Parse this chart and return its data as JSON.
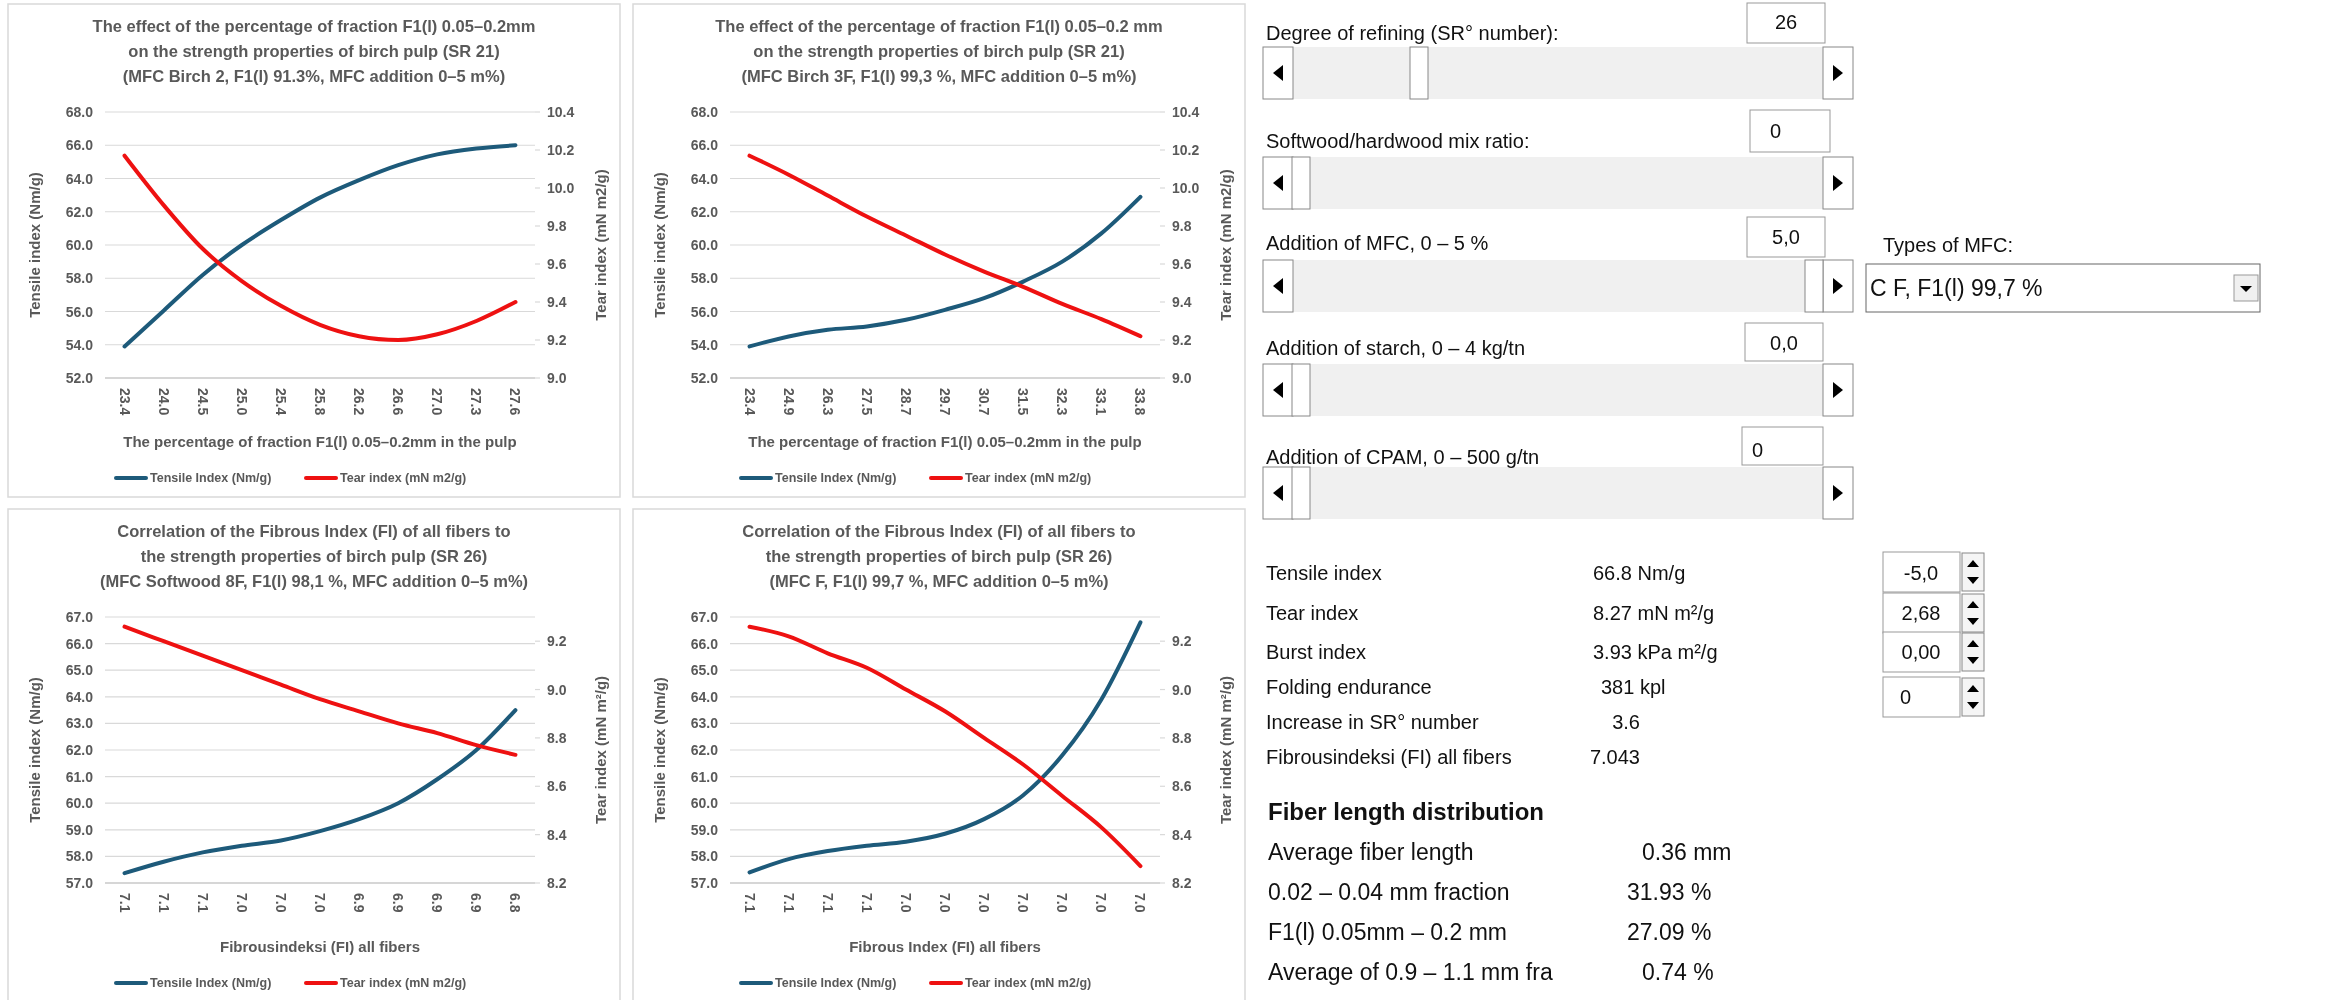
{
  "chart_data": [
    {
      "type": "line",
      "title": "The effect of the percentage of fraction F1(l) 0.05–0.2mm\non the strength properties of birch pulp (SR 21)\n(MFC Birch 2, F1(l) 91.3%, MFC addition 0–5 m%)",
      "xlabel": "The percentage of fraction F1(l) 0.05–0.2mm in the pulp",
      "ylabel": "Tensile index (Nm/g)",
      "y2label": "Tear index (mN m2/g)",
      "categories": [
        "23.4",
        "24.0",
        "24.5",
        "25.0",
        "25.4",
        "25.8",
        "26.2",
        "26.6",
        "27.0",
        "27.3",
        "27.6"
      ],
      "series": [
        {
          "name": "Tensile Index (Nm/g)",
          "color": "#1d5a7a",
          "values": [
            53.9,
            56.05,
            58.2,
            60.0,
            61.5,
            62.85,
            63.9,
            64.8,
            65.45,
            65.8,
            66.0
          ]
        },
        {
          "name": "Tear index (mN m2/g)",
          "color": "#ee1111",
          "axis": "y2",
          "values": [
            10.17,
            9.91,
            9.68,
            9.51,
            9.38,
            9.28,
            9.22,
            9.2,
            9.23,
            9.3,
            9.4
          ]
        }
      ],
      "ylim": [
        52,
        68
      ],
      "yticks": [
        {
          "value": 52,
          "label": "52.0"
        },
        {
          "value": 54,
          "label": "54.0"
        },
        {
          "value": 56,
          "label": "56.0"
        },
        {
          "value": 58,
          "label": "58.0"
        },
        {
          "value": 60,
          "label": "60.0"
        },
        {
          "value": 62,
          "label": "62.0"
        },
        {
          "value": 64,
          "label": "64.0"
        },
        {
          "value": 66,
          "label": "66.0"
        },
        {
          "value": 68,
          "label": "68.0"
        }
      ],
      "y2lim": [
        9.0,
        10.4
      ],
      "y2ticks": [
        {
          "value": 9,
          "label": "9.0"
        },
        {
          "value": 9.2,
          "label": "9.2"
        },
        {
          "value": 9.4,
          "label": "9.4"
        },
        {
          "value": 9.6,
          "label": "9.6"
        },
        {
          "value": 9.8,
          "label": "9.8"
        },
        {
          "value": 10,
          "label": "10.0"
        },
        {
          "value": 10.2,
          "label": "10.2"
        },
        {
          "value": 10.4,
          "label": "10.4"
        }
      ],
      "grid": "y",
      "legend": "bottom",
      "marker": "none"
    },
    {
      "type": "line",
      "title": "The effect of the percentage of fraction F1(l) 0.05–0.2 mm\non the strength properties of birch pulp (SR 21)\n(MFC Birch 3F, F1(l) 99,3 %, MFC addition 0–5 m%)",
      "xlabel": "The percentage of fraction F1(l) 0.05–0.2mm in the pulp",
      "ylabel": "Tensile index (Nm/g)",
      "y2label": "Tear index (mN m2/g)",
      "categories": [
        "23.4",
        "24.9",
        "26.3",
        "27.5",
        "28.7",
        "29.7",
        "30.7",
        "31.5",
        "32.3",
        "33.1",
        "33.8"
      ],
      "series": [
        {
          "name": "Tensile Index (Nm/g)",
          "color": "#1d5a7a",
          "values": [
            53.9,
            54.5,
            54.9,
            55.1,
            55.5,
            56.1,
            56.8,
            57.8,
            59.0,
            60.7,
            62.9
          ]
        },
        {
          "name": "Tear index (mN m2/g)",
          "color": "#ee1111",
          "axis": "y2",
          "values": [
            10.17,
            10.07,
            9.96,
            9.85,
            9.75,
            9.65,
            9.56,
            9.48,
            9.39,
            9.31,
            9.22
          ]
        }
      ],
      "ylim": [
        52,
        68
      ],
      "yticks": [
        {
          "value": 52,
          "label": "52.0"
        },
        {
          "value": 54,
          "label": "54.0"
        },
        {
          "value": 56,
          "label": "56.0"
        },
        {
          "value": 58,
          "label": "58.0"
        },
        {
          "value": 60,
          "label": "60.0"
        },
        {
          "value": 62,
          "label": "62.0"
        },
        {
          "value": 64,
          "label": "64.0"
        },
        {
          "value": 66,
          "label": "66.0"
        },
        {
          "value": 68,
          "label": "68.0"
        }
      ],
      "y2lim": [
        9.0,
        10.4
      ],
      "y2ticks": [
        {
          "value": 9,
          "label": "9.0"
        },
        {
          "value": 9.2,
          "label": "9.2"
        },
        {
          "value": 9.4,
          "label": "9.4"
        },
        {
          "value": 9.6,
          "label": "9.6"
        },
        {
          "value": 9.8,
          "label": "9.8"
        },
        {
          "value": 10,
          "label": "10.0"
        },
        {
          "value": 10.2,
          "label": "10.2"
        },
        {
          "value": 10.4,
          "label": "10.4"
        }
      ],
      "grid": "y",
      "legend": "bottom",
      "marker": "none"
    },
    {
      "type": "line",
      "title": "Correlation of the Fibrous Index (FI) of all fibers to\nthe strength properties of birch pulp (SR 26)\n(MFC Softwood 8F, F1(l) 98,1 %, MFC addition 0–5 m%)",
      "xlabel": "Fibrousindeksi (FI) all fibers",
      "ylabel": "Tensile index (Nm/g)",
      "y2label": "Tear index (mN m²/g)",
      "categories": [
        "7.1",
        "7.1",
        "7.1",
        "7.0",
        "7.0",
        "7.0",
        "6.9",
        "6.9",
        "6.9",
        "6.9",
        "6.8"
      ],
      "series": [
        {
          "name": "Tensile Index (Nm/g)",
          "color": "#1d5a7a",
          "values": [
            57.37,
            57.8,
            58.15,
            58.4,
            58.6,
            58.95,
            59.4,
            60.0,
            60.9,
            62.0,
            63.5
          ]
        },
        {
          "name": "Tear index (mN m2/g)",
          "color": "#ee1111",
          "axis": "y2",
          "values": [
            9.26,
            9.2,
            9.14,
            9.08,
            9.02,
            8.96,
            8.91,
            8.86,
            8.82,
            8.77,
            8.73
          ]
        }
      ],
      "ylim": [
        57,
        67
      ],
      "yticks": [
        {
          "value": 57,
          "label": "57.0"
        },
        {
          "value": 58,
          "label": "58.0"
        },
        {
          "value": 59,
          "label": "59.0"
        },
        {
          "value": 60,
          "label": "60.0"
        },
        {
          "value": 61,
          "label": "61.0"
        },
        {
          "value": 62,
          "label": "62.0"
        },
        {
          "value": 63,
          "label": "63.0"
        },
        {
          "value": 64,
          "label": "64.0"
        },
        {
          "value": 65,
          "label": "65.0"
        },
        {
          "value": 66,
          "label": "66.0"
        },
        {
          "value": 67,
          "label": "67.0"
        }
      ],
      "y2lim": [
        8.2,
        9.3
      ],
      "y2ticks": [
        {
          "value": 8.2,
          "label": "8.2"
        },
        {
          "value": 8.4,
          "label": "8.4"
        },
        {
          "value": 8.6,
          "label": "8.6"
        },
        {
          "value": 8.8,
          "label": "8.8"
        },
        {
          "value": 9,
          "label": "9.0"
        },
        {
          "value": 9.2,
          "label": "9.2"
        }
      ],
      "grid": "y",
      "legend": "bottom",
      "marker": "none"
    },
    {
      "type": "line",
      "title": "Correlation of the Fibrous Index (FI) of all fibers to\nthe strength properties of birch pulp (SR 26)\n(MFC F, F1(l) 99,7 %, MFC addition 0–5 m%)",
      "xlabel": "Fibrous Index (FI) all fibers",
      "ylabel": "Tensile index (Nm/g)",
      "y2label": "Tear index (mN m²/g)",
      "categories": [
        "7.1",
        "7.1",
        "7.1",
        "7.1",
        "7.0",
        "7.0",
        "7.0",
        "7.0",
        "7.0",
        "7.0",
        "7.0"
      ],
      "series": [
        {
          "name": "Tensile Index (Nm/g)",
          "color": "#1d5a7a",
          "values": [
            57.4,
            57.9,
            58.2,
            58.4,
            58.55,
            58.85,
            59.4,
            60.3,
            61.8,
            63.9,
            66.8
          ]
        },
        {
          "name": "Tear index (mN m2/g)",
          "color": "#ee1111",
          "axis": "y2",
          "values": [
            9.26,
            9.22,
            9.15,
            9.09,
            9.0,
            8.91,
            8.8,
            8.69,
            8.56,
            8.43,
            8.27
          ]
        }
      ],
      "ylim": [
        57,
        67
      ],
      "yticks": [
        {
          "value": 57,
          "label": "57.0"
        },
        {
          "value": 58,
          "label": "58.0"
        },
        {
          "value": 59,
          "label": "59.0"
        },
        {
          "value": 60,
          "label": "60.0"
        },
        {
          "value": 61,
          "label": "61.0"
        },
        {
          "value": 62,
          "label": "62.0"
        },
        {
          "value": 63,
          "label": "63.0"
        },
        {
          "value": 64,
          "label": "64.0"
        },
        {
          "value": 65,
          "label": "65.0"
        },
        {
          "value": 66,
          "label": "66.0"
        },
        {
          "value": 67,
          "label": "67.0"
        }
      ],
      "y2lim": [
        8.2,
        9.3
      ],
      "y2ticks": [
        {
          "value": 8.2,
          "label": "8.2"
        },
        {
          "value": 8.4,
          "label": "8.4"
        },
        {
          "value": 8.6,
          "label": "8.6"
        },
        {
          "value": 8.8,
          "label": "8.8"
        },
        {
          "value": 9,
          "label": "9.0"
        },
        {
          "value": 9.2,
          "label": "9.2"
        }
      ],
      "grid": "y",
      "legend": "bottom",
      "marker": "none"
    },
    {
      "type": "other",
      "annotations": [
        "Degree of refining (SR° number):",
        "26",
        "Softwood/hardwood mix ratio:",
        "0",
        "Addition of MFC, 0 – 5 %",
        "5,0",
        "Types of MFC:",
        "C F, F1(l) 99,7 %",
        "Addition of starch, 0 – 4 kg/tn",
        "0,0",
        "Addition of CPAM, 0 – 500 g/tn",
        "0",
        "Tensile index",
        "66.8 Nm/g",
        "-5,0",
        "Tear index",
        "8.27 mN m²/g",
        "2,68",
        "Burst index",
        "3.93 kPa m²/g",
        "0,00",
        "Folding endurance",
        "381 kpl",
        "0",
        "Increase in SR° number",
        "3.6",
        "Fibrousindeksi (FI) all fibers",
        "7.043",
        "Fiber length distribution",
        "Average fiber length",
        "0.36 mm",
        "0.02 – 0.04 mm fraction",
        "31.93 %",
        "F1(l) 0.05mm – 0.2 mm",
        "27.09 %",
        "Average of 0.9 – 1.1 mm fra",
        "0.74 %"
      ]
    }
  ]
}
